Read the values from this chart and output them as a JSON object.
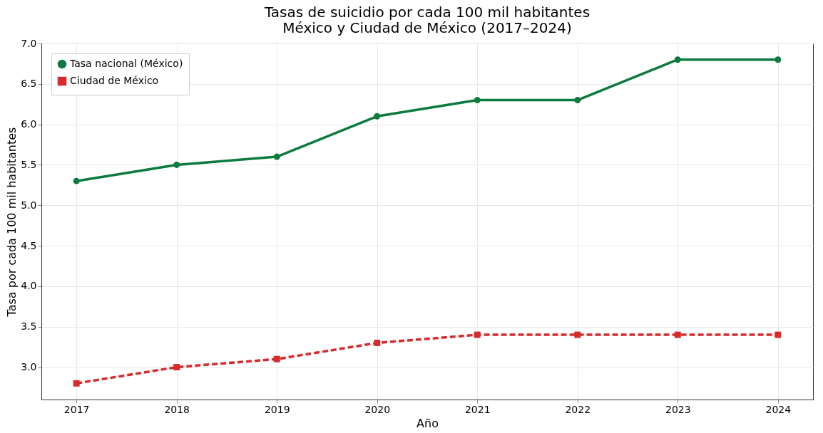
{
  "chart_data": {
    "type": "line",
    "title": "Tasas de suicidio por cada 100 mil habitantes\nMéxico y Ciudad de México (2017–2024)",
    "xlabel": "Año",
    "ylabel": "Tasa por cada 100 mil habitantes",
    "x": [
      2017,
      2018,
      2019,
      2020,
      2021,
      2022,
      2023,
      2024
    ],
    "series": [
      {
        "name": "Tasa nacional (México)",
        "color": "#0b7a3e",
        "values": [
          5.3,
          5.5,
          5.6,
          6.1,
          6.3,
          6.3,
          6.8,
          6.8
        ],
        "marker": "circle",
        "line_style": "solid"
      },
      {
        "name": "Ciudad de México",
        "color": "#d62b2b",
        "values": [
          2.8,
          3.0,
          3.1,
          3.3,
          3.4,
          3.4,
          3.4,
          3.4
        ],
        "marker": "square",
        "line_style": "dashed"
      }
    ],
    "xlim": [
      2016.65,
      2024.35
    ],
    "xticks": [
      2017,
      2018,
      2019,
      2020,
      2021,
      2022,
      2023,
      2024
    ],
    "ylim": [
      2.6,
      7.0
    ],
    "yticks": [
      {
        "value": 3,
        "label": "3.0"
      },
      3.5,
      {
        "value": 4,
        "label": "4.0"
      },
      4.5,
      {
        "value": 5,
        "label": "5.0"
      },
      5.5,
      {
        "value": 6,
        "label": "6.0"
      },
      6.5,
      {
        "value": 7,
        "label": "7.0"
      }
    ],
    "grid": true,
    "legend": "top left"
  }
}
